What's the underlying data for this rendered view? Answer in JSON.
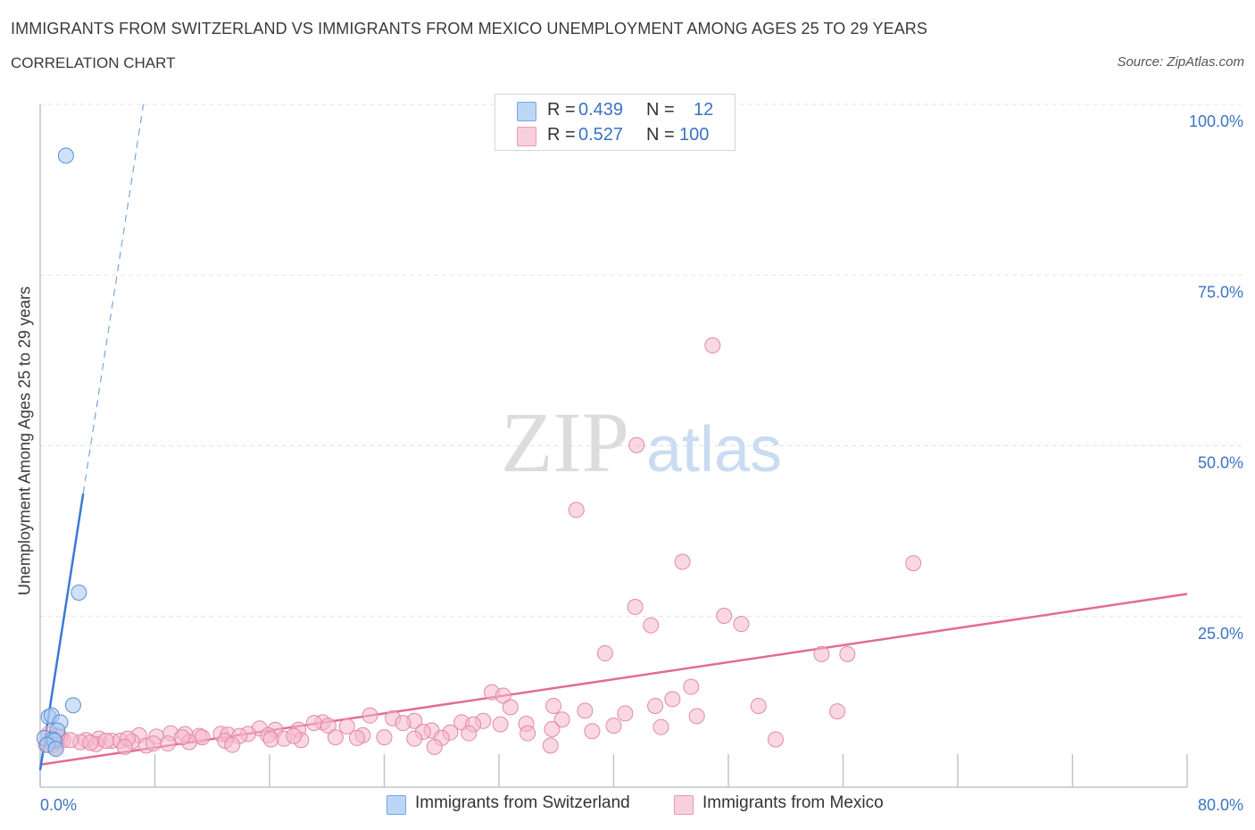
{
  "header": {
    "title": "IMMIGRANTS FROM SWITZERLAND VS IMMIGRANTS FROM MEXICO UNEMPLOYMENT AMONG AGES 25 TO 29 YEARS",
    "subtitle": "CORRELATION CHART",
    "source": "Source: ZipAtlas.com"
  },
  "watermark": {
    "zip": "ZIP",
    "atlas": "atlas"
  },
  "legend": {
    "rows": [
      {
        "r_label": "R =",
        "r_value": "0.439",
        "n_label": "N =",
        "n_value": "12",
        "color": "#a8c8f0"
      },
      {
        "r_label": "R =",
        "r_value": "0.527",
        "n_label": "N =",
        "n_value": "100",
        "color": "#f5b8cc"
      }
    ]
  },
  "bottom_legend": {
    "items": [
      {
        "label": "Immigrants from Switzerland",
        "color": "#a8c8f0"
      },
      {
        "label": "Immigrants from Mexico",
        "color": "#f5b8cc"
      }
    ]
  },
  "chart_data": {
    "type": "scatter",
    "title": "IMMIGRANTS FROM SWITZERLAND VS IMMIGRANTS FROM MEXICO UNEMPLOYMENT AMONG AGES 25 TO 29 YEARS",
    "xlabel": "",
    "ylabel": "Unemployment Among Ages 25 to 29 years",
    "xlim": [
      0,
      80
    ],
    "ylim": [
      0,
      100
    ],
    "x_tick_labels": [
      "0.0%",
      "80.0%"
    ],
    "y_tick_labels": [
      "100.0%",
      "75.0%",
      "50.0%",
      "25.0%"
    ],
    "y_ticks": [
      100,
      75,
      50,
      25
    ],
    "series": [
      {
        "name": "Immigrants from Switzerland",
        "color": "#a8c8f0",
        "stroke": "#5b8fd6",
        "points": [
          [
            1.8,
            92.5
          ],
          [
            2.7,
            28.5
          ],
          [
            2.3,
            12.0
          ],
          [
            0.6,
            10.3
          ],
          [
            0.8,
            10.5
          ],
          [
            1.4,
            9.5
          ],
          [
            1.2,
            8.3
          ],
          [
            0.3,
            7.2
          ],
          [
            0.9,
            7.0
          ],
          [
            1.0,
            6.8
          ],
          [
            0.5,
            6.2
          ],
          [
            1.1,
            5.6
          ]
        ],
        "trend": {
          "x0": 0.0,
          "y0": 2.5,
          "x1": 3.0,
          "y1": 43.0,
          "x_dash_end": 7.2,
          "y_dash_end": 100.0,
          "color": "#3c78d8"
        }
      },
      {
        "name": "Immigrants from Mexico",
        "color": "#f5b8cc",
        "stroke": "#e08aa6",
        "points": [
          [
            46.9,
            64.7
          ],
          [
            41.6,
            50.1
          ],
          [
            37.4,
            40.6
          ],
          [
            44.8,
            33.0
          ],
          [
            60.9,
            32.8
          ],
          [
            41.5,
            26.4
          ],
          [
            47.7,
            25.1
          ],
          [
            42.6,
            23.7
          ],
          [
            48.9,
            23.9
          ],
          [
            39.4,
            19.6
          ],
          [
            54.5,
            19.5
          ],
          [
            56.3,
            19.5
          ],
          [
            45.4,
            14.7
          ],
          [
            31.5,
            13.9
          ],
          [
            32.3,
            13.4
          ],
          [
            44.1,
            12.9
          ],
          [
            35.8,
            11.9
          ],
          [
            50.1,
            11.9
          ],
          [
            42.9,
            11.9
          ],
          [
            32.8,
            11.7
          ],
          [
            38.0,
            11.2
          ],
          [
            55.6,
            11.1
          ],
          [
            40.8,
            10.8
          ],
          [
            45.8,
            10.4
          ],
          [
            23.0,
            10.5
          ],
          [
            24.6,
            10.1
          ],
          [
            26.1,
            9.7
          ],
          [
            30.9,
            9.7
          ],
          [
            19.7,
            9.5
          ],
          [
            19.1,
            9.4
          ],
          [
            25.3,
            9.4
          ],
          [
            33.9,
            9.3
          ],
          [
            32.1,
            9.2
          ],
          [
            36.4,
            9.9
          ],
          [
            29.4,
            9.5
          ],
          [
            30.2,
            9.2
          ],
          [
            40.0,
            9.0
          ],
          [
            20.1,
            9.0
          ],
          [
            15.3,
            8.6
          ],
          [
            16.4,
            8.4
          ],
          [
            21.4,
            8.9
          ],
          [
            27.3,
            8.3
          ],
          [
            43.3,
            8.8
          ],
          [
            35.7,
            8.5
          ],
          [
            26.7,
            8.1
          ],
          [
            28.6,
            8.0
          ],
          [
            38.5,
            8.2
          ],
          [
            18.0,
            8.4
          ],
          [
            34.0,
            7.9
          ],
          [
            29.9,
            7.9
          ],
          [
            14.5,
            7.8
          ],
          [
            12.6,
            7.8
          ],
          [
            22.5,
            7.6
          ],
          [
            9.1,
            7.9
          ],
          [
            10.1,
            7.8
          ],
          [
            11.1,
            7.5
          ],
          [
            13.1,
            7.7
          ],
          [
            6.9,
            7.6
          ],
          [
            8.1,
            7.4
          ],
          [
            11.3,
            7.3
          ],
          [
            13.9,
            7.5
          ],
          [
            15.9,
            7.6
          ],
          [
            17.0,
            7.1
          ],
          [
            20.6,
            7.3
          ],
          [
            22.1,
            7.2
          ],
          [
            24.0,
            7.3
          ],
          [
            26.1,
            7.1
          ],
          [
            28.0,
            7.2
          ],
          [
            18.2,
            6.9
          ],
          [
            16.1,
            7.0
          ],
          [
            4.1,
            7.1
          ],
          [
            5.0,
            6.8
          ],
          [
            5.6,
            6.8
          ],
          [
            6.4,
            6.7
          ],
          [
            3.2,
            6.9
          ],
          [
            2.8,
            6.6
          ],
          [
            1.6,
            6.9
          ],
          [
            3.9,
            6.3
          ],
          [
            8.9,
            6.4
          ],
          [
            10.4,
            6.6
          ],
          [
            9.9,
            7.3
          ],
          [
            12.9,
            6.8
          ],
          [
            6.1,
            7.1
          ],
          [
            1.4,
            7.3
          ],
          [
            0.6,
            7.8
          ],
          [
            0.4,
            6.2
          ],
          [
            1.0,
            5.8
          ],
          [
            2.1,
            6.9
          ],
          [
            0.9,
            6.2
          ],
          [
            1.2,
            7.6
          ],
          [
            7.4,
            6.1
          ],
          [
            5.9,
            5.9
          ],
          [
            3.5,
            6.5
          ],
          [
            4.6,
            6.8
          ],
          [
            7.9,
            6.4
          ],
          [
            13.4,
            6.2
          ],
          [
            17.7,
            7.5
          ],
          [
            27.5,
            5.9
          ],
          [
            35.6,
            6.1
          ],
          [
            51.3,
            7.0
          ]
        ],
        "trend": {
          "x0": 0.0,
          "y0": 3.3,
          "x1": 80.0,
          "y1": 28.3,
          "color": "#e36b96"
        }
      }
    ]
  }
}
